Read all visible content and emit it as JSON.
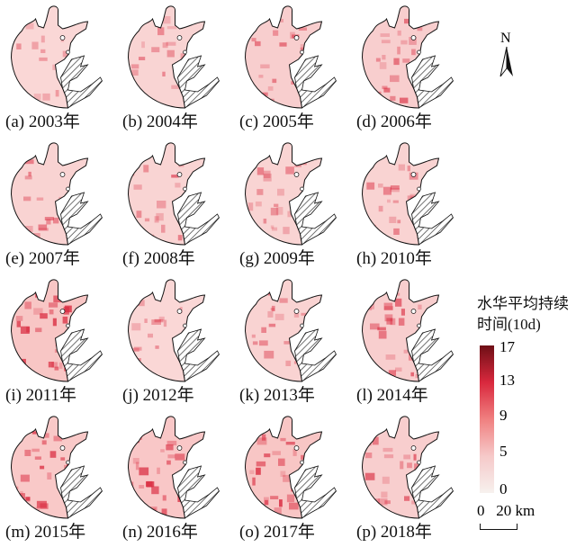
{
  "panels": [
    {
      "label": "(a) 2003年",
      "level": 0.15
    },
    {
      "label": "(b) 2004年",
      "level": 0.2
    },
    {
      "label": "(c) 2005年",
      "level": 0.3
    },
    {
      "label": "(d) 2006年",
      "level": 0.3
    },
    {
      "label": "(e) 2007年",
      "level": 0.22
    },
    {
      "label": "(f) 2008年",
      "level": 0.2
    },
    {
      "label": "(g) 2009年",
      "level": 0.2
    },
    {
      "label": "(h) 2010年",
      "level": 0.22
    },
    {
      "label": "(i) 2011年",
      "level": 0.45
    },
    {
      "label": "(j) 2012年",
      "level": 0.15
    },
    {
      "label": "(k) 2013年",
      "level": 0.22
    },
    {
      "label": "(l) 2014年",
      "level": 0.3
    },
    {
      "label": "(m) 2015年",
      "level": 0.4
    },
    {
      "label": "(n) 2016年",
      "level": 0.42
    },
    {
      "label": "(o) 2017年",
      "level": 0.45
    },
    {
      "label": "(p) 2018年",
      "level": 0.3
    }
  ],
  "north": "N",
  "legend": {
    "title_line1": "水华平均持续",
    "title_line2": "时间(10d)",
    "ticks": [
      "17",
      "13",
      "9",
      "5",
      "0"
    ],
    "range": [
      0,
      17
    ],
    "colors": [
      "#f7f1ee",
      "#f08080",
      "#6e0f16"
    ]
  },
  "scale": {
    "label": "0   20 km"
  }
}
